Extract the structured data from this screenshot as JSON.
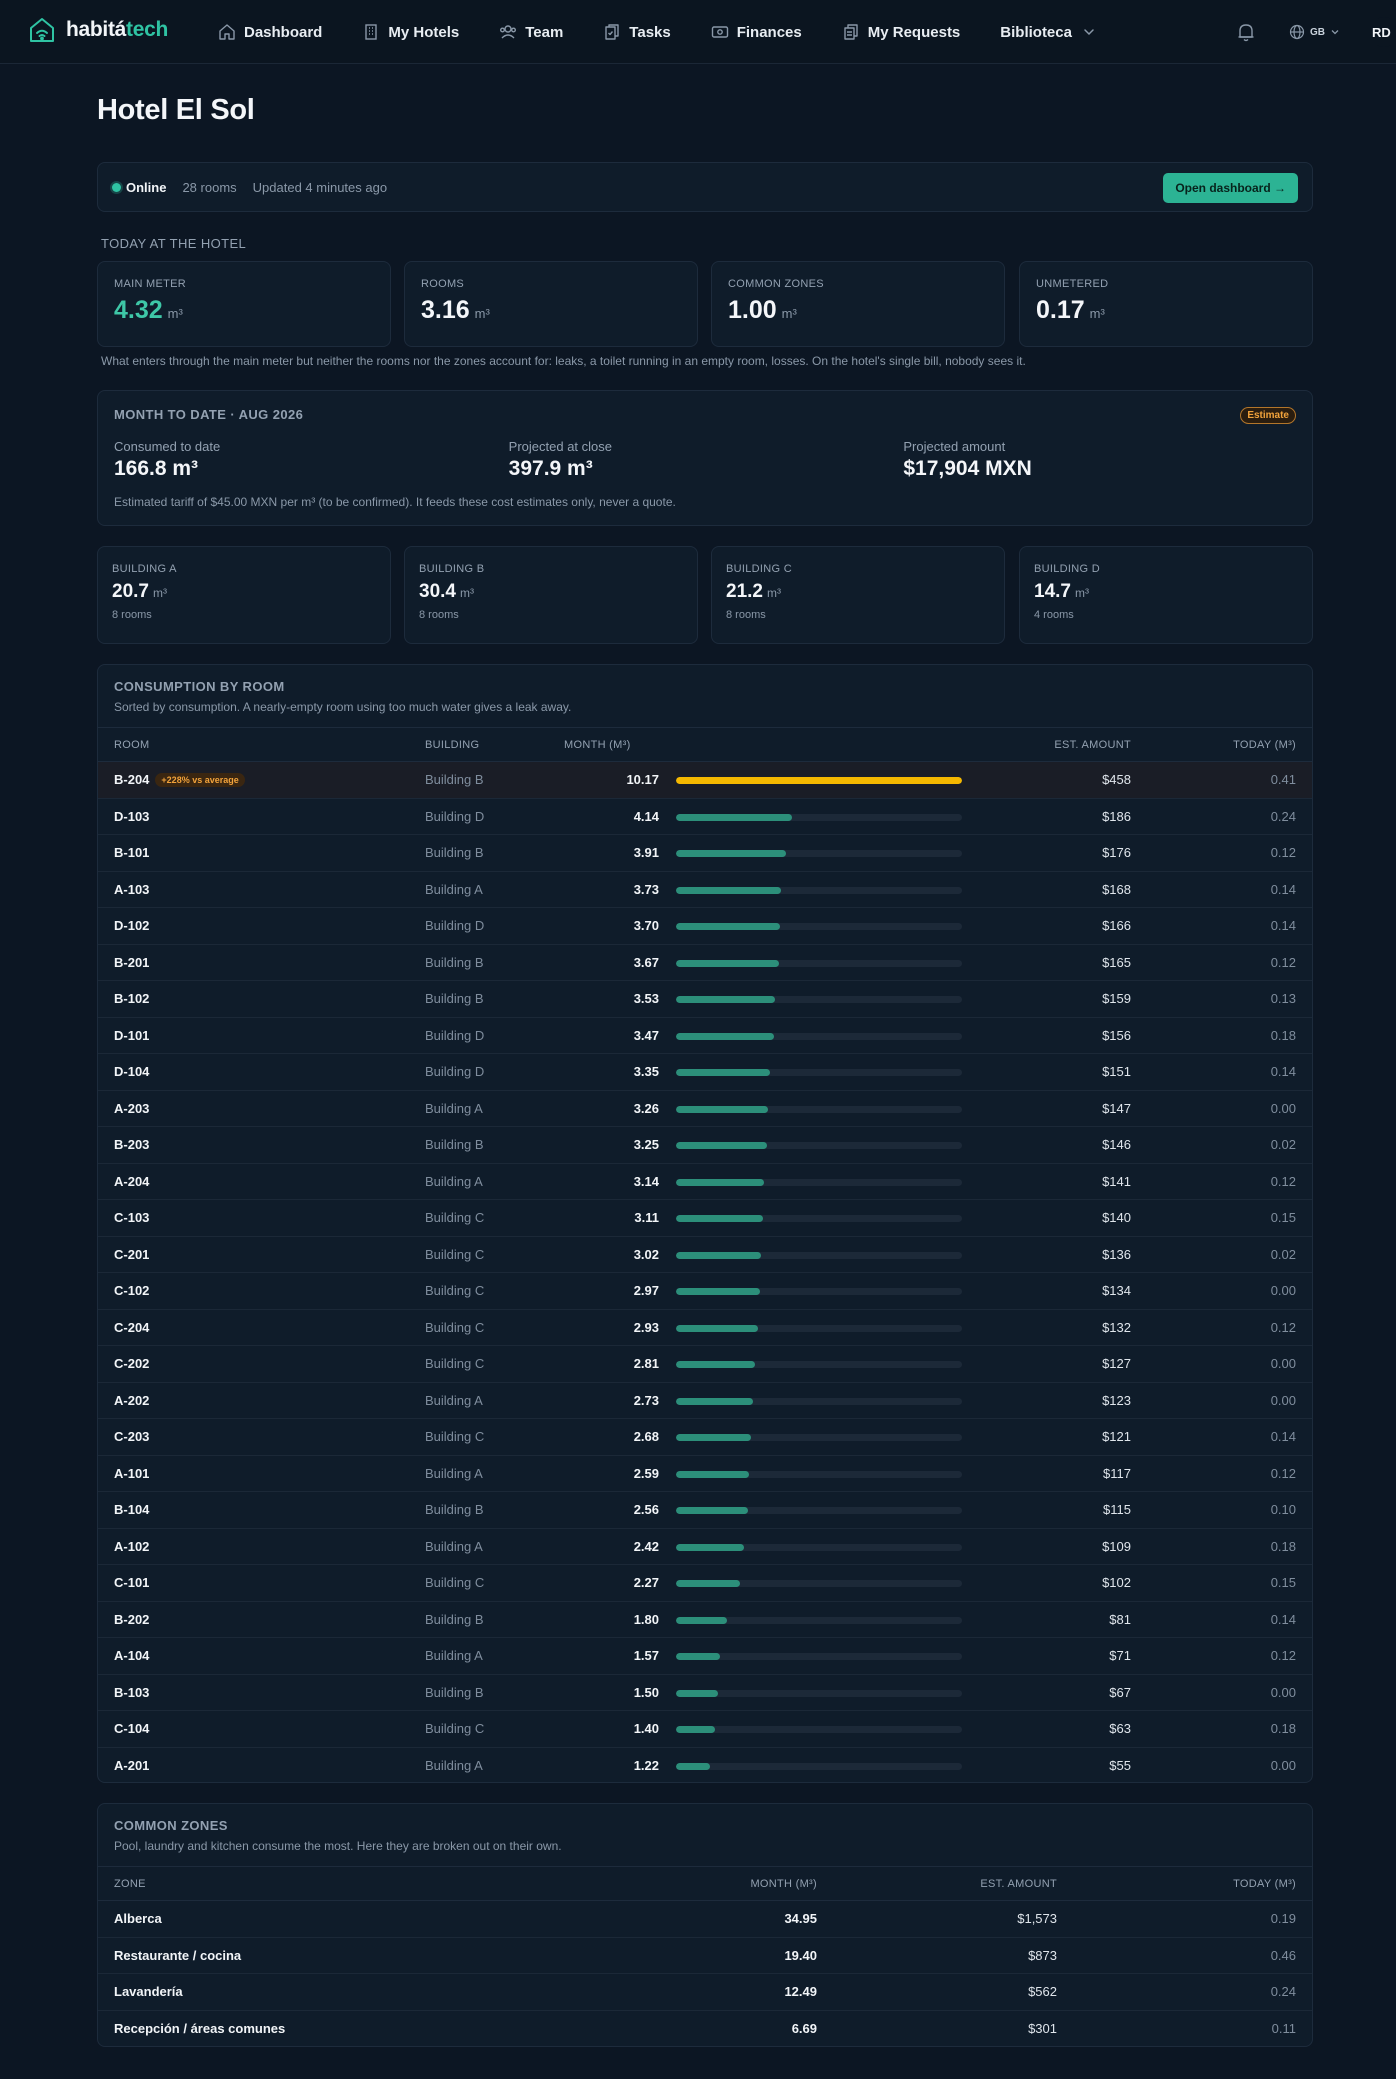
{
  "brand": {
    "part1": "habitá",
    "part2": "tech"
  },
  "nav": {
    "items": [
      {
        "label": "Dashboard",
        "icon": "home-icon"
      },
      {
        "label": "My Hotels",
        "icon": "building-icon"
      },
      {
        "label": "Team",
        "icon": "users-icon"
      },
      {
        "label": "Tasks",
        "icon": "clipboard-icon"
      },
      {
        "label": "Finances",
        "icon": "cash-icon"
      },
      {
        "label": "My Requests",
        "icon": "documents-icon"
      },
      {
        "label": "Biblioteca",
        "icon": "chevron-down-icon"
      }
    ],
    "lang": "GB",
    "avatar": "RD"
  },
  "page": {
    "title": "Hotel El Sol"
  },
  "status": {
    "online": "Online",
    "rooms": "28 rooms",
    "updated": "Updated 4 minutes ago",
    "button": "Open dashboard →"
  },
  "today": {
    "label": "TODAY AT THE HOTEL",
    "unit": "m³",
    "metrics": [
      {
        "label": "MAIN METER",
        "value": "4.32"
      },
      {
        "label": "ROOMS",
        "value": "3.16"
      },
      {
        "label": "COMMON ZONES",
        "value": "1.00"
      },
      {
        "label": "UNMETERED",
        "value": "0.17"
      }
    ],
    "note": "What enters through the main meter but neither the rooms nor the zones account for: leaks, a toilet running in an empty room, losses. On the hotel's single bill, nobody sees it."
  },
  "month": {
    "title": "MONTH TO DATE · AUG 2026",
    "badge": "Estimate",
    "cols": [
      {
        "label": "Consumed to date",
        "value": "166.8 m³"
      },
      {
        "label": "Projected at close",
        "value": "397.9 m³"
      },
      {
        "label": "Projected amount",
        "value": "$17,904 MXN"
      }
    ],
    "footer": "Estimated tariff of $45.00 MXN per m³ (to be confirmed). It feeds these cost estimates only, never a quote."
  },
  "buildings": {
    "unit": "m³",
    "items": [
      {
        "label": "BUILDING A",
        "value": "20.7",
        "rooms": "8 rooms"
      },
      {
        "label": "BUILDING B",
        "value": "30.4",
        "rooms": "8 rooms"
      },
      {
        "label": "BUILDING C",
        "value": "21.2",
        "rooms": "8 rooms"
      },
      {
        "label": "BUILDING D",
        "value": "14.7",
        "rooms": "4 rooms"
      }
    ]
  },
  "rooms_table": {
    "title": "CONSUMPTION BY ROOM",
    "subtitle": "Sorted by consumption. A nearly-empty room using too much water gives a leak away.",
    "headers": {
      "room": "ROOM",
      "building": "BUILDING",
      "month": "MONTH (M³)",
      "amount": "EST. AMOUNT",
      "today": "TODAY (M³)"
    },
    "bar_max": 10.17,
    "warn_color": "#f5b800",
    "bar_color": "#2c8f7a",
    "rows": [
      {
        "room": "B-204",
        "badge": "+228% vs average",
        "building": "Building B",
        "month": "10.17",
        "amount": "$458",
        "today": "0.41"
      },
      {
        "room": "D-103",
        "building": "Building D",
        "month": "4.14",
        "amount": "$186",
        "today": "0.24"
      },
      {
        "room": "B-101",
        "building": "Building B",
        "month": "3.91",
        "amount": "$176",
        "today": "0.12"
      },
      {
        "room": "A-103",
        "building": "Building A",
        "month": "3.73",
        "amount": "$168",
        "today": "0.14"
      },
      {
        "room": "D-102",
        "building": "Building D",
        "month": "3.70",
        "amount": "$166",
        "today": "0.14"
      },
      {
        "room": "B-201",
        "building": "Building B",
        "month": "3.67",
        "amount": "$165",
        "today": "0.12"
      },
      {
        "room": "B-102",
        "building": "Building B",
        "month": "3.53",
        "amount": "$159",
        "today": "0.13"
      },
      {
        "room": "D-101",
        "building": "Building D",
        "month": "3.47",
        "amount": "$156",
        "today": "0.18"
      },
      {
        "room": "D-104",
        "building": "Building D",
        "month": "3.35",
        "amount": "$151",
        "today": "0.14"
      },
      {
        "room": "A-203",
        "building": "Building A",
        "month": "3.26",
        "amount": "$147",
        "today": "0.00"
      },
      {
        "room": "B-203",
        "building": "Building B",
        "month": "3.25",
        "amount": "$146",
        "today": "0.02"
      },
      {
        "room": "A-204",
        "building": "Building A",
        "month": "3.14",
        "amount": "$141",
        "today": "0.12"
      },
      {
        "room": "C-103",
        "building": "Building C",
        "month": "3.11",
        "amount": "$140",
        "today": "0.15"
      },
      {
        "room": "C-201",
        "building": "Building C",
        "month": "3.02",
        "amount": "$136",
        "today": "0.02"
      },
      {
        "room": "C-102",
        "building": "Building C",
        "month": "2.97",
        "amount": "$134",
        "today": "0.00"
      },
      {
        "room": "C-204",
        "building": "Building C",
        "month": "2.93",
        "amount": "$132",
        "today": "0.12"
      },
      {
        "room": "C-202",
        "building": "Building C",
        "month": "2.81",
        "amount": "$127",
        "today": "0.00"
      },
      {
        "room": "A-202",
        "building": "Building A",
        "month": "2.73",
        "amount": "$123",
        "today": "0.00"
      },
      {
        "room": "C-203",
        "building": "Building C",
        "month": "2.68",
        "amount": "$121",
        "today": "0.14"
      },
      {
        "room": "A-101",
        "building": "Building A",
        "month": "2.59",
        "amount": "$117",
        "today": "0.12"
      },
      {
        "room": "B-104",
        "building": "Building B",
        "month": "2.56",
        "amount": "$115",
        "today": "0.10"
      },
      {
        "room": "A-102",
        "building": "Building A",
        "month": "2.42",
        "amount": "$109",
        "today": "0.18"
      },
      {
        "room": "C-101",
        "building": "Building C",
        "month": "2.27",
        "amount": "$102",
        "today": "0.15"
      },
      {
        "room": "B-202",
        "building": "Building B",
        "month": "1.80",
        "amount": "$81",
        "today": "0.14"
      },
      {
        "room": "A-104",
        "building": "Building A",
        "month": "1.57",
        "amount": "$71",
        "today": "0.12"
      },
      {
        "room": "B-103",
        "building": "Building B",
        "month": "1.50",
        "amount": "$67",
        "today": "0.00"
      },
      {
        "room": "C-104",
        "building": "Building C",
        "month": "1.40",
        "amount": "$63",
        "today": "0.18"
      },
      {
        "room": "A-201",
        "building": "Building A",
        "month": "1.22",
        "amount": "$55",
        "today": "0.00"
      }
    ]
  },
  "zones_table": {
    "title": "COMMON ZONES",
    "subtitle": "Pool, laundry and kitchen consume the most. Here they are broken out on their own.",
    "headers": {
      "zone": "ZONE",
      "month": "MONTH (M³)",
      "amount": "EST. AMOUNT",
      "today": "TODAY (M³)"
    },
    "rows": [
      {
        "zone": "Alberca",
        "month": "34.95",
        "amount": "$1,573",
        "today": "0.19"
      },
      {
        "zone": "Restaurante / cocina",
        "month": "19.40",
        "amount": "$873",
        "today": "0.46"
      },
      {
        "zone": "Lavandería",
        "month": "12.49",
        "amount": "$562",
        "today": "0.24"
      },
      {
        "zone": "Recepción / áreas comunes",
        "month": "6.69",
        "amount": "$301",
        "today": "0.11"
      }
    ]
  }
}
